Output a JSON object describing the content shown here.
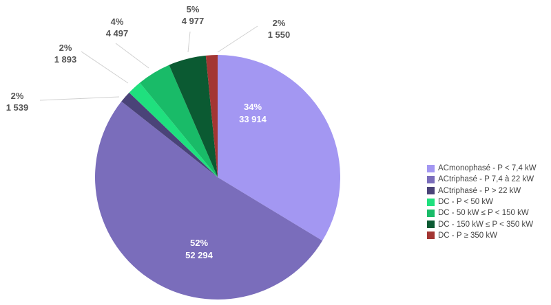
{
  "chart_data": {
    "type": "pie",
    "title": "",
    "start_angle_deg": 0,
    "direction": "clockwise",
    "legend_position": "right",
    "categories": [
      "ACmonophasé - P < 7,4 kW",
      "ACtriphasé - P 7,4 à 22 kW",
      "ACtriphasé - P > 22 kW",
      "DC - P < 50 kW",
      "DC - 50 kW ≤ P < 150 kW",
      "DC - 150 kW  ≤ P < 350 kW",
      "DC - P ≥ 350 kW"
    ],
    "values": [
      33914,
      52294,
      1539,
      1893,
      4497,
      4977,
      1550
    ],
    "value_labels": [
      "33 914",
      "52 294",
      "1 539",
      "1 893",
      "4 497",
      "4 977",
      "1 550"
    ],
    "percent_labels": [
      "34%",
      "52%",
      "2%",
      "2%",
      "4%",
      "5%",
      "2%"
    ],
    "colors": [
      "#a397f2",
      "#7a6dbb",
      "#4a4378",
      "#1fe07e",
      "#19bb68",
      "#0b5a32",
      "#a33633"
    ]
  },
  "legend": {
    "items": [
      {
        "label": "ACmonophasé - P < 7,4 kW",
        "color": "#a397f2"
      },
      {
        "label": "ACtriphasé - P 7,4 à 22 kW",
        "color": "#7a6dbb"
      },
      {
        "label": "ACtriphasé - P > 22 kW",
        "color": "#4a4378"
      },
      {
        "label": "DC - P < 50 kW",
        "color": "#1fe07e"
      },
      {
        "label": "DC - 50 kW ≤ P < 150 kW",
        "color": "#19bb68"
      },
      {
        "label": "DC - 150 kW  ≤ P < 350 kW",
        "color": "#0b5a32"
      },
      {
        "label": "DC - P ≥ 350 kW",
        "color": "#a33633"
      }
    ]
  },
  "labels": {
    "inside": [
      {
        "pct": "34%",
        "value": "33 914"
      },
      {
        "pct": "52%",
        "value": "52 294"
      }
    ],
    "outside": [
      {
        "pct": "2%",
        "value": "1 539"
      },
      {
        "pct": "2%",
        "value": "1 893"
      },
      {
        "pct": "4%",
        "value": "4 497"
      },
      {
        "pct": "5%",
        "value": "4 977"
      },
      {
        "pct": "2%",
        "value": "1 550"
      }
    ]
  }
}
